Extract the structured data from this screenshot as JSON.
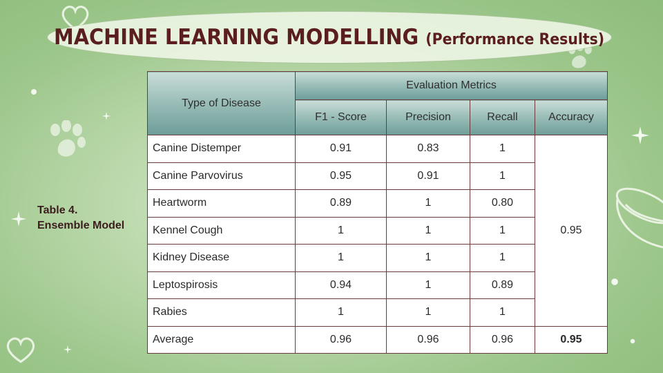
{
  "title": {
    "main": "MACHINE LEARNING MODELLING",
    "sub": "(Performance Results)"
  },
  "caption": {
    "line1": "Table 4.",
    "line2": "Ensemble Model"
  },
  "table": {
    "header_type": "Type of Disease",
    "header_group": "Evaluation Metrics",
    "columns": [
      "F1 - Score",
      "Precision",
      "Recall",
      "Accuracy"
    ],
    "rows": [
      {
        "name": "Canine Distemper",
        "f1": "0.91",
        "precision": "0.83",
        "recall": "1"
      },
      {
        "name": "Canine Parvovirus",
        "f1": "0.95",
        "precision": "0.91",
        "recall": "1"
      },
      {
        "name": "Heartworm",
        "f1": "0.89",
        "precision": "1",
        "recall": "0.80"
      },
      {
        "name": "Kennel Cough",
        "f1": "1",
        "precision": "1",
        "recall": "1"
      },
      {
        "name": "Kidney Disease",
        "f1": "1",
        "precision": "1",
        "recall": "1"
      },
      {
        "name": "Leptospirosis",
        "f1": "0.94",
        "precision": "1",
        "recall": "0.89"
      },
      {
        "name": "Rabies",
        "f1": "1",
        "precision": "1",
        "recall": "1"
      }
    ],
    "accuracy_merged": "0.95",
    "average": {
      "name": "Average",
      "f1": "0.96",
      "precision": "0.96",
      "recall": "0.96",
      "accuracy": "0.95"
    }
  },
  "decorations": [
    "heart-icon",
    "paw-icon",
    "sparkle-icon",
    "pet-bowl-icon",
    "bone-icon"
  ]
}
